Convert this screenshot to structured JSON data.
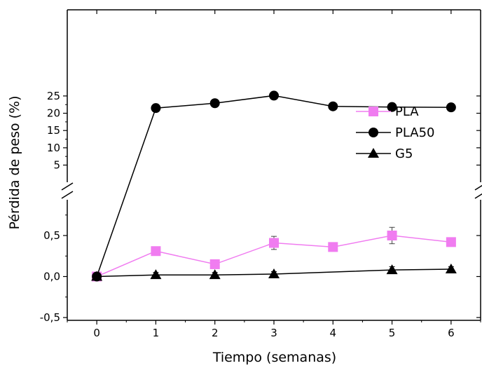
{
  "chart_data": {
    "type": "line",
    "xlabel": "Tiempo (semanas)",
    "ylabel": "Pérdida de peso (%)",
    "xlim": [
      -0.5,
      6.5
    ],
    "x_ticks": [
      "0",
      "1",
      "2",
      "3",
      "4",
      "5",
      "6"
    ],
    "y_segments": [
      {
        "range": [
          -0.5,
          0.8
        ],
        "ticks": [
          "-0,5",
          "0,0",
          "0,5"
        ]
      },
      {
        "range": [
          2.5,
          26.0
        ],
        "ticks": [
          "5",
          "10",
          "15",
          "20",
          "25"
        ]
      }
    ],
    "axis_break": true,
    "legend_position": "right",
    "series": [
      {
        "name": "PLA",
        "marker": "square",
        "color": "#f07cf0",
        "marker_color": "#f07cf0",
        "x": [
          0,
          1,
          2,
          3,
          4,
          5,
          6
        ],
        "y": [
          0.0,
          0.31,
          0.15,
          0.41,
          0.36,
          0.5,
          0.42
        ],
        "error": [
          0.02,
          0.05,
          0.04,
          0.08,
          0.04,
          0.1,
          0.04
        ]
      },
      {
        "name": "PLA50",
        "marker": "circle",
        "color": "#000000",
        "marker_color": "#000000",
        "x": [
          0,
          1,
          2,
          3,
          4,
          5,
          6
        ],
        "y": [
          0.0,
          21.5,
          22.9,
          25.1,
          22.0,
          21.8,
          21.7
        ]
      },
      {
        "name": "G5",
        "marker": "triangle",
        "color": "#000000",
        "marker_color": "#000000",
        "x": [
          0,
          1,
          2,
          3,
          4,
          5,
          6
        ],
        "y": [
          0.0,
          0.02,
          0.02,
          0.03,
          null,
          0.08,
          0.09
        ],
        "error": [
          0.01,
          0.03,
          0.03,
          0.03,
          null,
          0.04,
          0.03
        ]
      }
    ]
  }
}
